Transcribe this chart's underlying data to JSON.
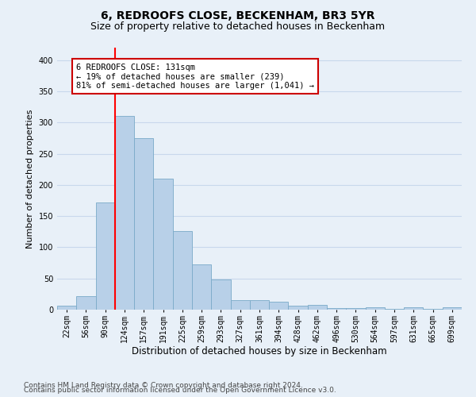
{
  "title": "6, REDROOFS CLOSE, BECKENHAM, BR3 5YR",
  "subtitle": "Size of property relative to detached houses in Beckenham",
  "xlabel": "Distribution of detached houses by size in Beckenham",
  "ylabel": "Number of detached properties",
  "categories": [
    "22sqm",
    "56sqm",
    "90sqm",
    "124sqm",
    "157sqm",
    "191sqm",
    "225sqm",
    "259sqm",
    "293sqm",
    "327sqm",
    "361sqm",
    "394sqm",
    "428sqm",
    "462sqm",
    "496sqm",
    "530sqm",
    "564sqm",
    "597sqm",
    "631sqm",
    "665sqm",
    "699sqm"
  ],
  "values": [
    7,
    22,
    172,
    310,
    275,
    210,
    126,
    73,
    49,
    15,
    15,
    13,
    7,
    8,
    3,
    2,
    4,
    1,
    4,
    1,
    4
  ],
  "bar_color": "#b8d0e8",
  "bar_edge_color": "#7aaac8",
  "red_line_x": 2.5,
  "annotation_text": "6 REDROOFS CLOSE: 131sqm\n← 19% of detached houses are smaller (239)\n81% of semi-detached houses are larger (1,041) →",
  "annotation_box_color": "#ffffff",
  "annotation_box_edge": "#cc0000",
  "ylim": [
    0,
    420
  ],
  "yticks": [
    0,
    50,
    100,
    150,
    200,
    250,
    300,
    350,
    400
  ],
  "grid_color": "#c8d8ec",
  "background_color": "#e8f0f8",
  "plot_bg_color": "#e8f0f8",
  "footer_line1": "Contains HM Land Registry data © Crown copyright and database right 2024.",
  "footer_line2": "Contains public sector information licensed under the Open Government Licence v3.0.",
  "title_fontsize": 10,
  "subtitle_fontsize": 9,
  "xlabel_fontsize": 8.5,
  "ylabel_fontsize": 8,
  "tick_fontsize": 7,
  "footer_fontsize": 6.5,
  "ann_fontsize": 7.5
}
